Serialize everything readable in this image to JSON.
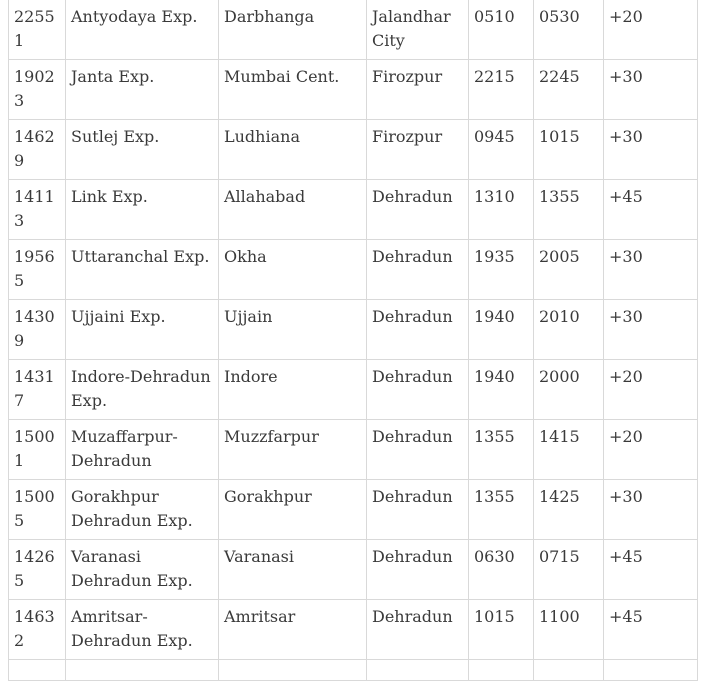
{
  "rows": [
    [
      "22551",
      "Antyodaya Exp.",
      "Darbhanga",
      "Jalandhar City",
      "0510",
      "0530",
      "+20"
    ],
    [
      "19023",
      "Janta Exp.",
      "Mumbai Cent.",
      "Firozpur",
      "2215",
      "2245",
      "+30"
    ],
    [
      "14629",
      "Sutlej Exp.",
      "Ludhiana",
      "Firozpur",
      "0945",
      "1015",
      "+30"
    ],
    [
      "14113",
      "Link Exp.",
      "Allahabad",
      "Dehradun",
      "1310",
      "1355",
      "+45"
    ],
    [
      "19565",
      "Uttaranchal Exp.",
      "Okha",
      "Dehradun",
      "1935",
      "2005",
      "+30"
    ],
    [
      "14309",
      "Ujjaini Exp.",
      "Ujjain",
      "Dehradun",
      "1940",
      "2010",
      "+30"
    ],
    [
      "14317",
      "Indore-Dehradun Exp.",
      "Indore",
      "Dehradun",
      "1940",
      "2000",
      "+20"
    ],
    [
      "15001",
      "Muzaffarpur-Dehradun",
      "Muzzfarpur",
      "Dehradun",
      "1355",
      "1415",
      "+20"
    ],
    [
      "15005",
      "Gorakhpur Dehradun Exp.",
      "Gorakhpur",
      "Dehradun",
      "1355",
      "1425",
      "+30"
    ],
    [
      "14265",
      "Varanasi Dehradun Exp.",
      "Varanasi",
      "Dehradun",
      "0630",
      "0715",
      "+45"
    ],
    [
      "14632",
      "Amritsar-Dehradun Exp.",
      "Amritsar",
      "Dehradun",
      "1015",
      "1100",
      "+45"
    ]
  ]
}
